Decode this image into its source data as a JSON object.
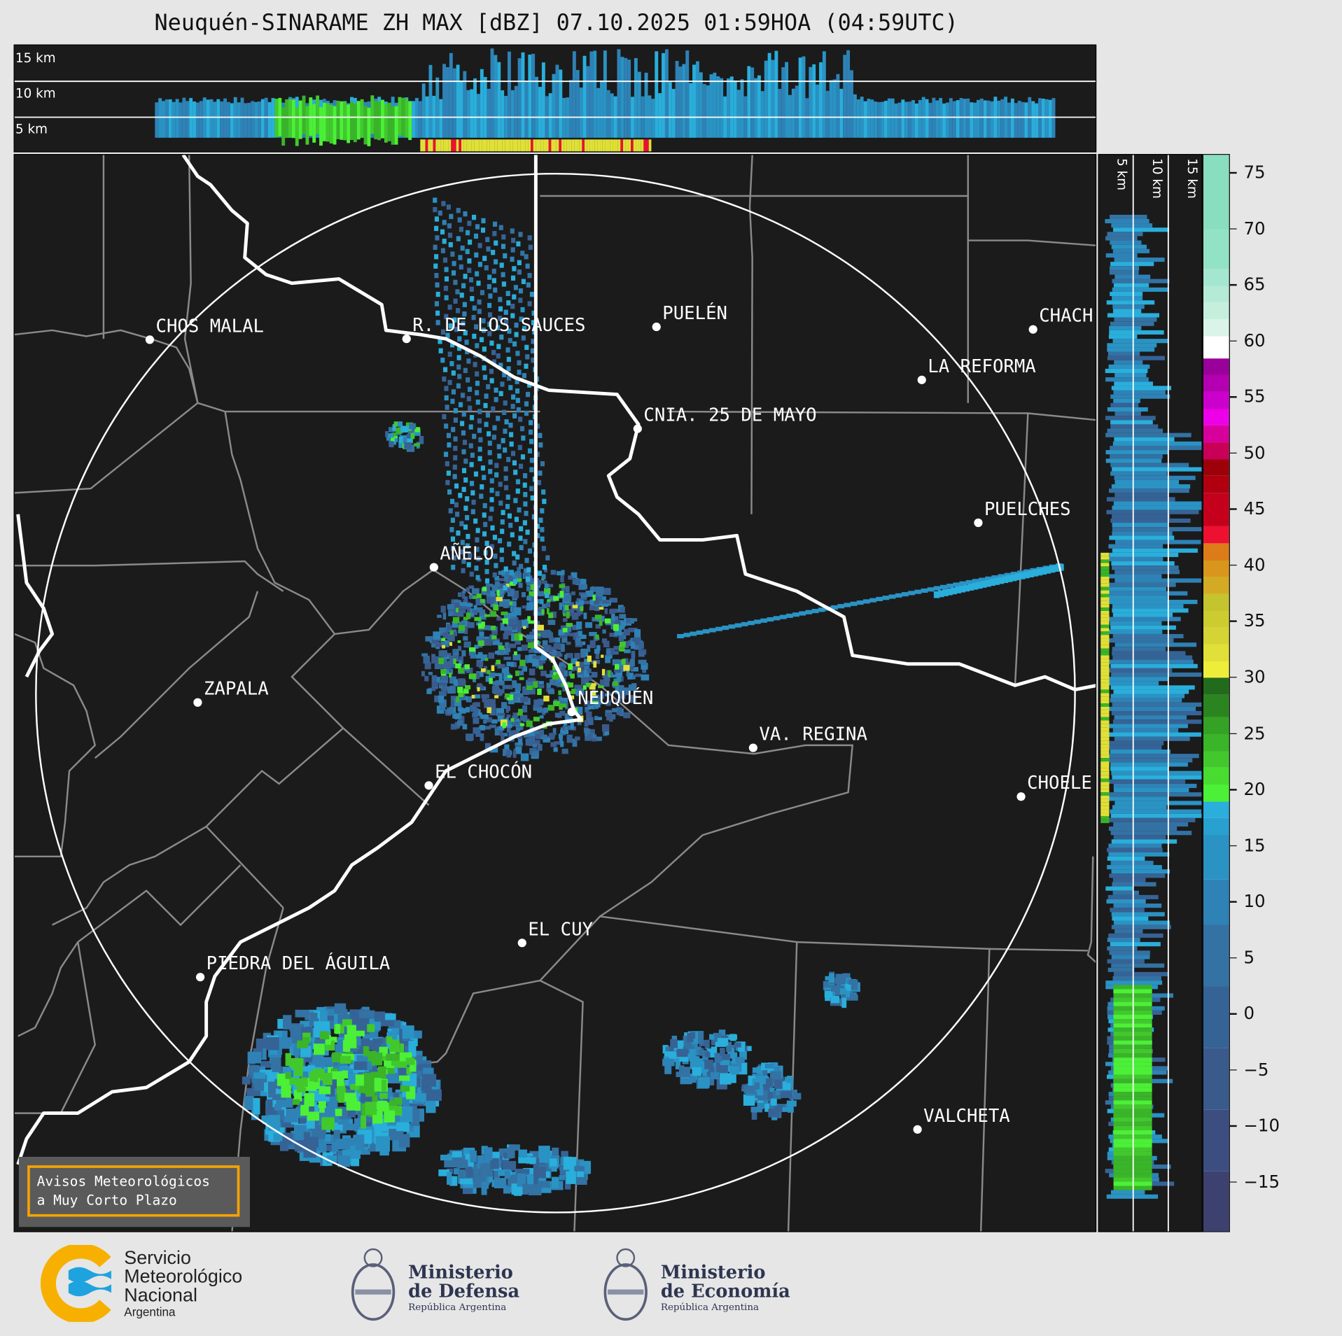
{
  "title": "Neuquén-SINARAME ZH MAX [dBZ] 07.10.2025 01:59HOA (04:59UTC)",
  "top_panel": {
    "height_labels": [
      "15 km",
      "10 km",
      "5 km"
    ]
  },
  "right_panel": {
    "height_labels": [
      "5 km",
      "10 km",
      "15 km"
    ]
  },
  "colorbar": {
    "range": [
      -19.5,
      76.6
    ],
    "ticks": [
      "75",
      "70",
      "65",
      "60",
      "55",
      "50",
      "45",
      "40",
      "35",
      "30",
      "25",
      "20",
      "15",
      "10",
      "5",
      "0",
      "−5",
      "−10",
      "−15"
    ],
    "tick_values": [
      75,
      70,
      65,
      60,
      55,
      50,
      45,
      40,
      35,
      30,
      25,
      20,
      15,
      10,
      5,
      0,
      -5,
      -10,
      -15
    ],
    "bands": [
      {
        "from": -19.5,
        "to": -14,
        "color": "#3d4170"
      },
      {
        "from": -14,
        "to": -8.5,
        "color": "#3c4e80"
      },
      {
        "from": -8.5,
        "to": -3,
        "color": "#3a5a8b"
      },
      {
        "from": -3,
        "to": 2.5,
        "color": "#366396"
      },
      {
        "from": 2.5,
        "to": 8,
        "color": "#3372a3"
      },
      {
        "from": 8,
        "to": 12,
        "color": "#2e82b6"
      },
      {
        "from": 12,
        "to": 16,
        "color": "#2a93c4"
      },
      {
        "from": 16,
        "to": 17.5,
        "color": "#28a0d0"
      },
      {
        "from": 17.5,
        "to": 19,
        "color": "#2aaedb"
      },
      {
        "from": 19,
        "to": 20.5,
        "color": "#4cf036"
      },
      {
        "from": 20.5,
        "to": 22,
        "color": "#48dc30"
      },
      {
        "from": 22,
        "to": 23.5,
        "color": "#42c82c"
      },
      {
        "from": 23.5,
        "to": 25,
        "color": "#3ab428"
      },
      {
        "from": 25,
        "to": 26.5,
        "color": "#34a224"
      },
      {
        "from": 26.5,
        "to": 28.5,
        "color": "#2a8520"
      },
      {
        "from": 28.5,
        "to": 30,
        "color": "#236b1c"
      },
      {
        "from": 30,
        "to": 31.5,
        "color": "#eeee3a"
      },
      {
        "from": 31.5,
        "to": 33,
        "color": "#e0e038"
      },
      {
        "from": 33,
        "to": 34.5,
        "color": "#d4d434"
      },
      {
        "from": 34.5,
        "to": 36,
        "color": "#cccc30"
      },
      {
        "from": 36,
        "to": 37.5,
        "color": "#c4c42e"
      },
      {
        "from": 37.5,
        "to": 39,
        "color": "#d4aa24"
      },
      {
        "from": 39,
        "to": 40.5,
        "color": "#d8961c"
      },
      {
        "from": 40.5,
        "to": 42,
        "color": "#dc7c18"
      },
      {
        "from": 42,
        "to": 43.5,
        "color": "#ee1030"
      },
      {
        "from": 43.5,
        "to": 46.5,
        "color": "#c4001c"
      },
      {
        "from": 46.5,
        "to": 48,
        "color": "#b00010"
      },
      {
        "from": 48,
        "to": 49.5,
        "color": "#9c0008"
      },
      {
        "from": 49.5,
        "to": 51,
        "color": "#c80058"
      },
      {
        "from": 51,
        "to": 52.5,
        "color": "#d8009c"
      },
      {
        "from": 52.5,
        "to": 54,
        "color": "#ec00e8"
      },
      {
        "from": 54,
        "to": 55.5,
        "color": "#cc00cc"
      },
      {
        "from": 55.5,
        "to": 57,
        "color": "#b400b0"
      },
      {
        "from": 57,
        "to": 58.5,
        "color": "#9a009a"
      },
      {
        "from": 58.5,
        "to": 60.5,
        "color": "#ffffff"
      },
      {
        "from": 60.5,
        "to": 62,
        "color": "#daf4ea"
      },
      {
        "from": 62,
        "to": 63.5,
        "color": "#c6eedd"
      },
      {
        "from": 63.5,
        "to": 65,
        "color": "#b4ead6"
      },
      {
        "from": 65,
        "to": 66.5,
        "color": "#a4e6cf"
      },
      {
        "from": 66.5,
        "to": 70,
        "color": "#92e2c6"
      },
      {
        "from": 70,
        "to": 76.6,
        "color": "#88debe"
      }
    ]
  },
  "cities": [
    {
      "name": "CHOS MALAL"
    },
    {
      "name": "R. DE LOS SAUCES"
    },
    {
      "name": "PUELÉN"
    },
    {
      "name": "CHACH"
    },
    {
      "name": "LA REFORMA"
    },
    {
      "name": "CNIA. 25 DE MAYO"
    },
    {
      "name": "PUELCHES"
    },
    {
      "name": "AÑELO"
    },
    {
      "name": "ZAPALA"
    },
    {
      "name": "NEUQUÉN"
    },
    {
      "name": "VA. REGINA"
    },
    {
      "name": "EL CHOCÓN"
    },
    {
      "name": "CHOELE"
    },
    {
      "name": "EL CUY"
    },
    {
      "name": "PIEDRA DEL ÁGUILA"
    },
    {
      "name": "VALCHETA"
    }
  ],
  "warning_box": {
    "line1": "Avisos Meteorológicos",
    "line2": "a Muy Corto Plazo",
    "border_color": "#f5a300"
  },
  "footer": {
    "smn": {
      "line1": "Servicio",
      "line2": "Meteorológico",
      "line3": "Nacional",
      "line4": "Argentina"
    },
    "defensa": {
      "line1": "Ministerio",
      "line2": "de Defensa",
      "line3": "República Argentina"
    },
    "economia": {
      "line1": "Ministerio",
      "line2": "de Economía",
      "line3": "República Argentina"
    }
  }
}
